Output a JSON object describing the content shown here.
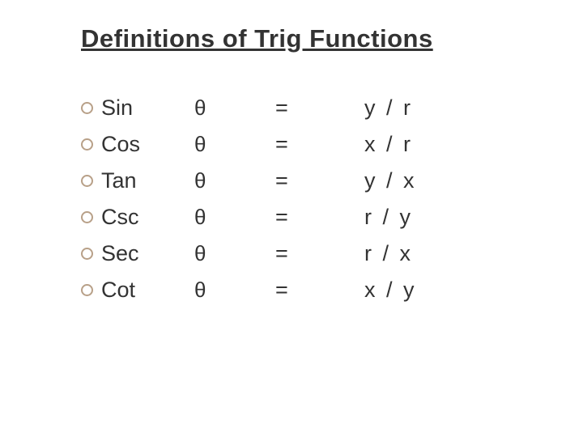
{
  "title": "Definitions of Trig Functions",
  "theta_symbol": "θ",
  "equals": "=",
  "rows": [
    {
      "fn": "Sin",
      "def": "y / r"
    },
    {
      "fn": "Cos",
      "def": "x / r"
    },
    {
      "fn": "Tan",
      "def": "y / x"
    },
    {
      "fn": "Csc",
      "def": "r / y"
    },
    {
      "fn": "Sec",
      "def": "r / x"
    },
    {
      "fn": "Cot",
      "def": "x / y"
    }
  ],
  "style": {
    "background_color": "#ffffff",
    "text_color": "#333333",
    "bullet_border_color": "#b8a088",
    "title_fontsize": 31,
    "body_fontsize": 27,
    "font_family": "Verdana, Geneva, sans-serif"
  }
}
